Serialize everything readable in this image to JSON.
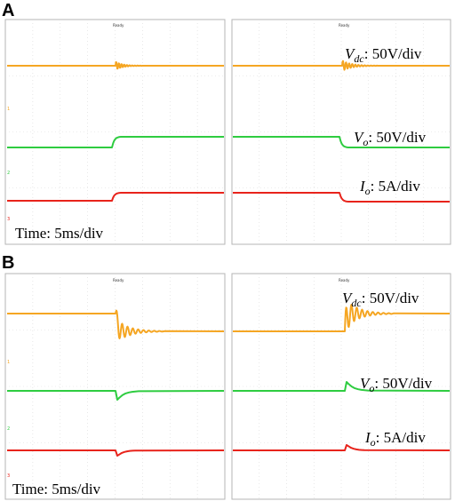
{
  "figure": {
    "panel_a_letter": "A",
    "panel_b_letter": "B",
    "scope_header": "Ready",
    "channel_markers": [
      "1",
      "2",
      "3"
    ],
    "colors": {
      "vdc": "#f5a623",
      "vo": "#2ecc40",
      "io": "#e8231b",
      "grid": "#d9d9d9",
      "frame": "#b5b5b5"
    }
  },
  "chart_data": [
    {
      "type": "line",
      "panel": "A",
      "time_label": "Time: 5ms/div",
      "time_per_div": "5ms",
      "channels": [
        {
          "name": "V_dc",
          "scale": "50V/div",
          "before": 0,
          "after": 0,
          "left_event": "small damped ringing",
          "right_event": "small damped ringing"
        },
        {
          "name": "V_o",
          "scale": "50V/div",
          "left_event": "step up",
          "right_event": "step down"
        },
        {
          "name": "I_o",
          "scale": "5A/div",
          "left_event": "step up",
          "right_event": "step down"
        }
      ],
      "label_vdc_sym": "V",
      "label_vdc_sub": "dc",
      "label_vdc_scale": ": 50V/div",
      "label_vo_sym": "V",
      "label_vo_sub": "o",
      "label_vo_scale": ": 50V/div",
      "label_io_sym": "I",
      "label_io_sub": "o",
      "label_io_scale": ": 5A/div"
    },
    {
      "type": "line",
      "panel": "B",
      "time_label": "Time: 5ms/div",
      "time_per_div": "5ms",
      "channels": [
        {
          "name": "V_dc",
          "scale": "50V/div",
          "left_event": "step down with damped ringing",
          "right_event": "step up with damped ringing"
        },
        {
          "name": "V_o",
          "scale": "50V/div",
          "left_event": "brief dip",
          "right_event": "brief spike"
        },
        {
          "name": "I_o",
          "scale": "5A/div",
          "left_event": "brief dip",
          "right_event": "brief spike"
        }
      ],
      "label_vdc_sym": "V",
      "label_vdc_sub": "dc",
      "label_vdc_scale": ": 50V/div",
      "label_vo_sym": "V",
      "label_vo_sub": "o",
      "label_vo_scale": ": 50V/div",
      "label_io_sym": "I",
      "label_io_sub": "o",
      "label_io_scale": ": 5A/div"
    }
  ]
}
